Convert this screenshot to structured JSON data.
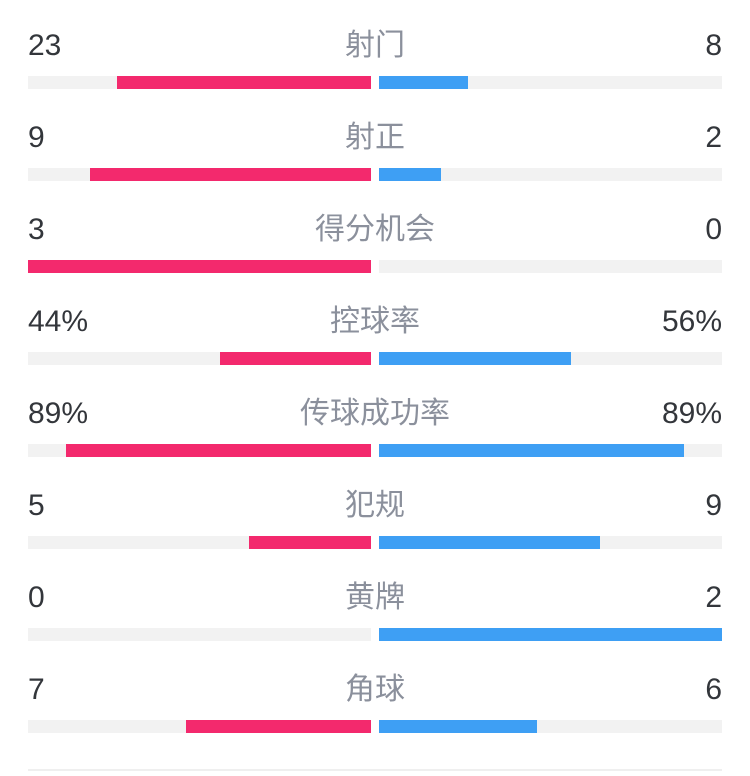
{
  "colors": {
    "home": "#F3296D",
    "away": "#3E9FF4",
    "track": "#F2F2F2",
    "label": "#8B909C",
    "value": "#33363B",
    "divider": "#EFEFEF",
    "bg": "#FFFFFF"
  },
  "stats": [
    {
      "label": "射门",
      "home_display": "23",
      "away_display": "8",
      "home_value": 23,
      "away_value": 8,
      "is_percent": false
    },
    {
      "label": "射正",
      "home_display": "9",
      "away_display": "2",
      "home_value": 9,
      "away_value": 2,
      "is_percent": false
    },
    {
      "label": "得分机会",
      "home_display": "3",
      "away_display": "0",
      "home_value": 3,
      "away_value": 0,
      "is_percent": false
    },
    {
      "label": "控球率",
      "home_display": "44%",
      "away_display": "56%",
      "home_value": 44,
      "away_value": 56,
      "is_percent": true
    },
    {
      "label": "传球成功率",
      "home_display": "89%",
      "away_display": "89%",
      "home_value": 89,
      "away_value": 89,
      "is_percent": true
    },
    {
      "label": "犯规",
      "home_display": "5",
      "away_display": "9",
      "home_value": 5,
      "away_value": 9,
      "is_percent": false
    },
    {
      "label": "黄牌",
      "home_display": "0",
      "away_display": "2",
      "home_value": 0,
      "away_value": 2,
      "is_percent": false
    },
    {
      "label": "角球",
      "home_display": "7",
      "away_display": "6",
      "home_value": 7,
      "away_value": 6,
      "is_percent": false
    }
  ],
  "chart_data": {
    "type": "bar",
    "variant": "bilateral-head-to-head-match-stats",
    "categories": [
      "射门",
      "射正",
      "得分机会",
      "控球率",
      "传球成功率",
      "犯规",
      "黄牌",
      "角球"
    ],
    "series": [
      {
        "name": "left-team",
        "side": "left",
        "color": "#F3296D",
        "values": [
          23,
          9,
          3,
          44,
          89,
          5,
          0,
          7
        ]
      },
      {
        "name": "right-team",
        "side": "right",
        "color": "#3E9FF4",
        "values": [
          8,
          2,
          0,
          56,
          89,
          9,
          2,
          6
        ]
      }
    ],
    "percent_categories": [
      "控球率",
      "传球成功率"
    ],
    "bar_rule": "percent rows fill value/100 of the half-width; count rows fill value/(left+right) of the half-width, growing outward from center",
    "title": "",
    "legend_position": "none",
    "grid": false
  }
}
